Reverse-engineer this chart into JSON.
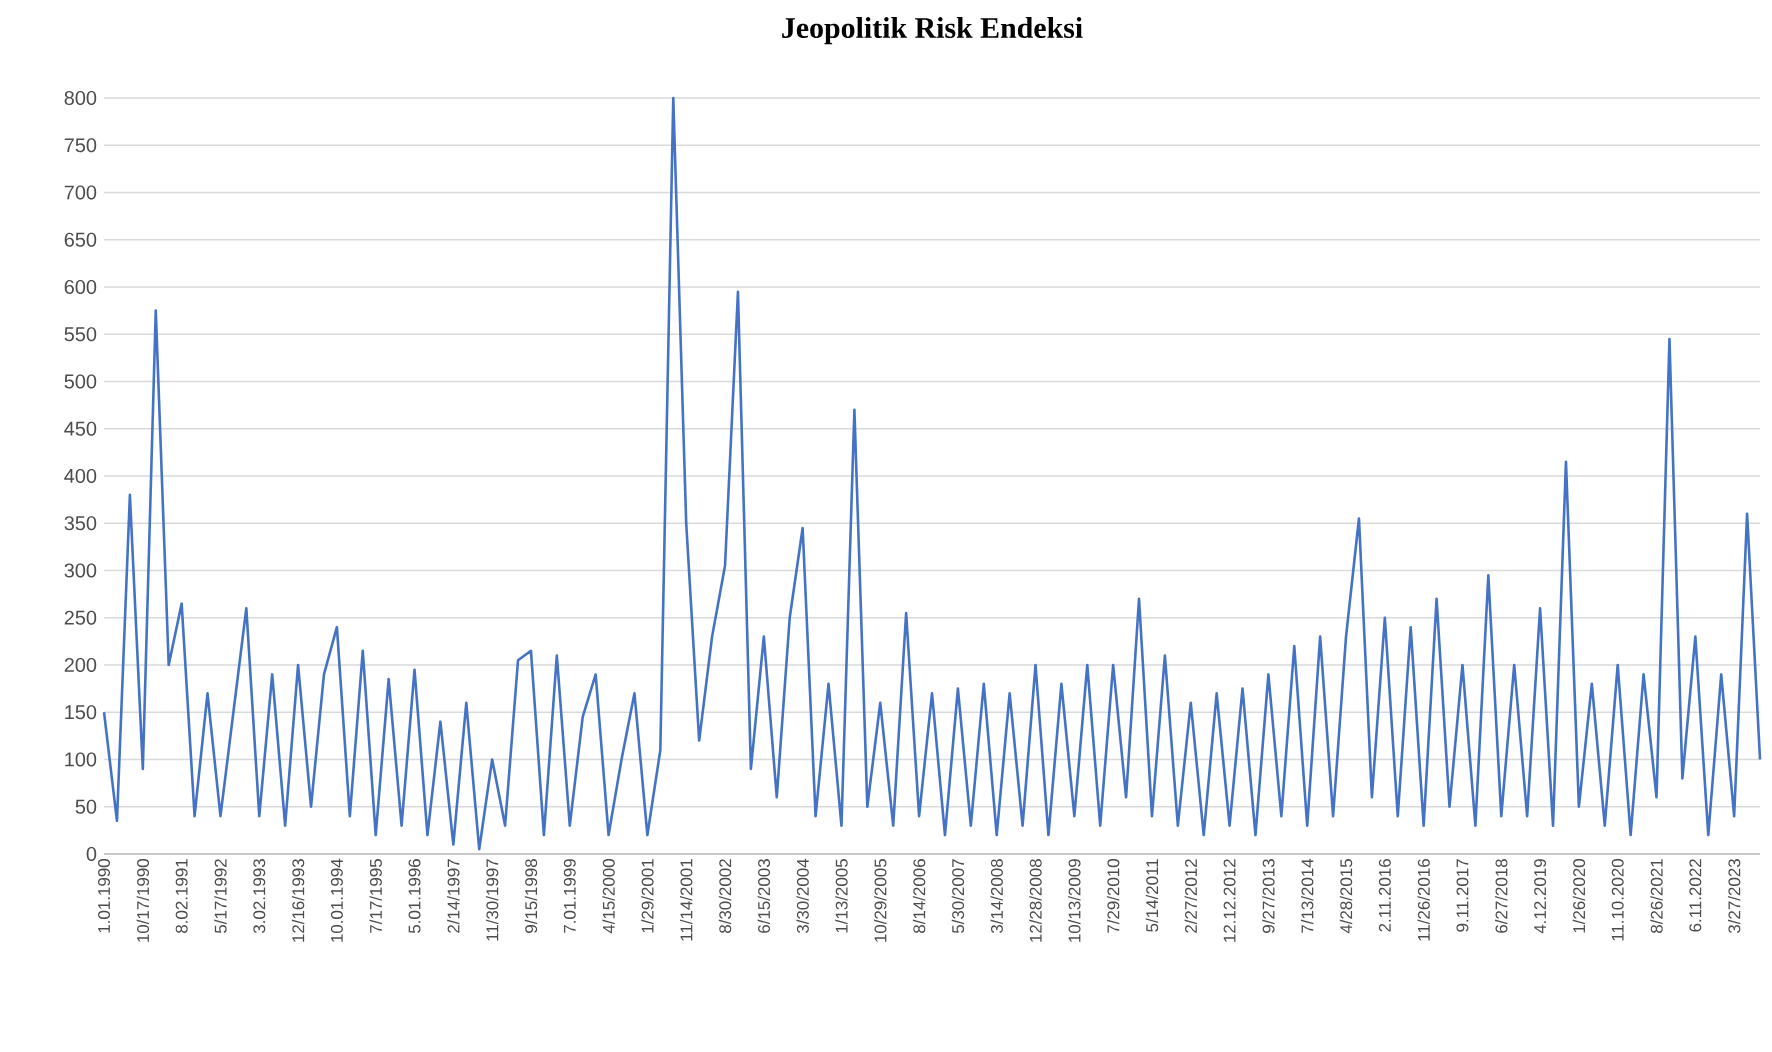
{
  "chart_data": {
    "type": "line",
    "title": "Jeopolitik Risk Endeksi",
    "categories": [
      "1.01.1990",
      null,
      null,
      "10/17/1990",
      null,
      null,
      "8.02.1991",
      null,
      null,
      "5/17/1992",
      null,
      null,
      "3.02.1993",
      null,
      null,
      "12/16/1993",
      null,
      null,
      "10.01.1994",
      null,
      null,
      "7/17/1995",
      null,
      null,
      "5.01.1996",
      null,
      null,
      "2/14/1997",
      null,
      null,
      "11/30/1997",
      null,
      null,
      "9/15/1998",
      null,
      null,
      "7.01.1999",
      null,
      null,
      "4/15/2000",
      null,
      null,
      "1/29/2001",
      null,
      null,
      "11/14/2001",
      null,
      null,
      "8/30/2002",
      null,
      null,
      "6/15/2003",
      null,
      null,
      "3/30/2004",
      null,
      null,
      "1/13/2005",
      null,
      null,
      "10/29/2005",
      null,
      null,
      "8/14/2006",
      null,
      null,
      "5/30/2007",
      null,
      null,
      "3/14/2008",
      null,
      null,
      "12/28/2008",
      null,
      null,
      "10/13/2009",
      null,
      null,
      "7/29/2010",
      null,
      null,
      "5/14/2011",
      null,
      null,
      "2/27/2012",
      null,
      null,
      "12.12.2012",
      null,
      null,
      "9/27/2013",
      null,
      null,
      "7/13/2014",
      null,
      null,
      "4/28/2015",
      null,
      null,
      "2.11.2016",
      null,
      null,
      "11/26/2016",
      null,
      null,
      "9.11.2017",
      null,
      null,
      "6/27/2018",
      null,
      null,
      "4.12.2019",
      null,
      null,
      "1/26/2020",
      null,
      null,
      "11.10.2020",
      null,
      null,
      "8/26/2021",
      null,
      null,
      "6.11.2022",
      null,
      null,
      "3/27/2023",
      null,
      null
    ],
    "series": [
      {
        "color": "#4472c4",
        "values": [
          150,
          35,
          380,
          90,
          575,
          200,
          265,
          40,
          170,
          40,
          150,
          260,
          40,
          190,
          30,
          200,
          50,
          190,
          240,
          40,
          215,
          20,
          185,
          30,
          195,
          20,
          140,
          10,
          160,
          5,
          100,
          30,
          205,
          215,
          20,
          210,
          30,
          145,
          190,
          20,
          100,
          170,
          20,
          110,
          800,
          350,
          120,
          230,
          305,
          595,
          90,
          230,
          60,
          250,
          345,
          40,
          180,
          30,
          470,
          50,
          160,
          30,
          255,
          40,
          170,
          20,
          175,
          30,
          180,
          20,
          170,
          30,
          200,
          20,
          180,
          40,
          200,
          30,
          200,
          60,
          270,
          40,
          210,
          30,
          160,
          20,
          170,
          30,
          175,
          20,
          190,
          40,
          220,
          30,
          230,
          40,
          230,
          355,
          60,
          250,
          40,
          240,
          30,
          270,
          50,
          200,
          30,
          295,
          40,
          200,
          40,
          260,
          30,
          415,
          50,
          180,
          30,
          200,
          20,
          190,
          60,
          545,
          80,
          230,
          20,
          190,
          40,
          360,
          100
        ]
      }
    ],
    "ylim": [
      0,
      800
    ],
    "yticks": [
      0,
      50,
      100,
      150,
      200,
      250,
      300,
      350,
      400,
      450,
      500,
      550,
      600,
      650,
      700,
      750,
      800
    ],
    "grid": "y"
  }
}
